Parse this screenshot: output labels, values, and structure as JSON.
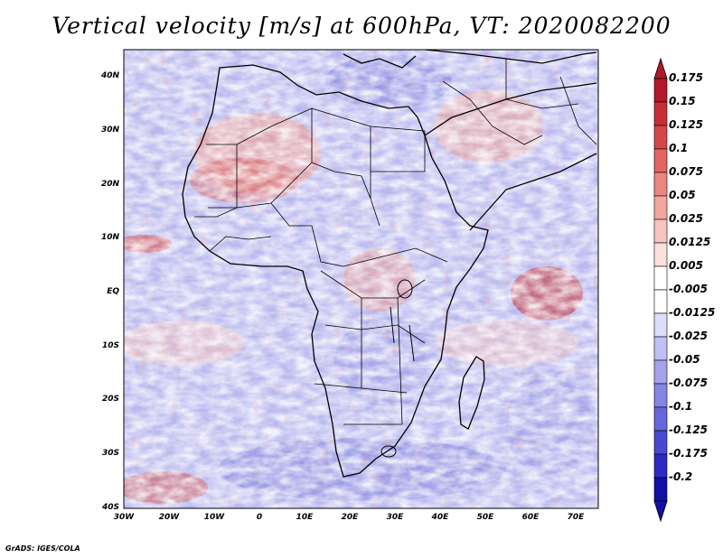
{
  "title": "Vertical velocity [m/s] at 600hPa, VT: 2020082200",
  "map": {
    "lat_labels": [
      "40N",
      "30N",
      "20N",
      "10N",
      "EQ",
      "10S",
      "20S",
      "30S",
      "40S"
    ],
    "lon_labels": [
      "30W",
      "20W",
      "10W",
      "0",
      "10E",
      "20E",
      "30E",
      "40E",
      "50E",
      "60E",
      "70E"
    ],
    "lat_range": [
      -40,
      45
    ],
    "lon_range": [
      -30,
      75
    ]
  },
  "colorbar": {
    "levels": [
      "0.175",
      "0.15",
      "0.125",
      "0.1",
      "0.075",
      "0.05",
      "0.025",
      "0.0125",
      "0.005",
      "-0.005",
      "-0.0125",
      "-0.025",
      "-0.05",
      "-0.075",
      "-0.1",
      "-0.125",
      "-0.175",
      "-0.2"
    ],
    "colors": [
      "#b2182b",
      "#c72f35",
      "#d6474a",
      "#e26562",
      "#ec8580",
      "#f3a6a0",
      "#f8c4bf",
      "#fce0dd",
      "#ffffff",
      "#ffffff",
      "#dcdcfb",
      "#c0c0f5",
      "#a3a3ee",
      "#8585e6",
      "#6666dd",
      "#4848d2",
      "#2a2ac4",
      "#1010a8"
    ],
    "max_color": "#b2182b",
    "min_color": "#1010a8"
  },
  "credit": "GrADS: IGES/COLA"
}
